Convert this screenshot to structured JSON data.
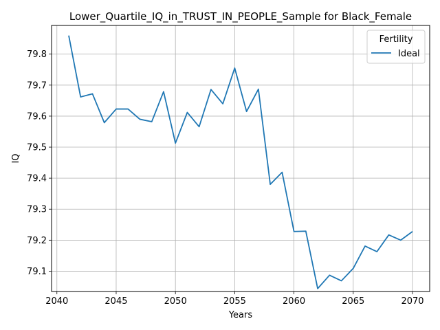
{
  "chart_data": {
    "type": "line",
    "title": "Lower_Quartile_IQ_in_TRUST_IN_PEOPLE_Sample for Black_Female",
    "xlabel": "Years",
    "ylabel": "IQ",
    "xlim": [
      2039.55,
      2071.45
    ],
    "ylim": [
      79.0345,
      79.8925
    ],
    "xticks": [
      2040,
      2045,
      2050,
      2055,
      2060,
      2065,
      2070
    ],
    "yticks": [
      79.1,
      79.2,
      79.3,
      79.4,
      79.5,
      79.6,
      79.7,
      79.8
    ],
    "grid": true,
    "legend": {
      "title": "Fertility",
      "placement": "top-right"
    },
    "series": [
      {
        "name": "Ideal",
        "color": "#1f77b4",
        "x": [
          2041,
          2042,
          2043,
          2044,
          2045,
          2046,
          2047,
          2048,
          2049,
          2050,
          2051,
          2052,
          2053,
          2054,
          2055,
          2056,
          2057,
          2058,
          2059,
          2060,
          2061,
          2062,
          2063,
          2064,
          2065,
          2066,
          2067,
          2068,
          2069,
          2070
        ],
        "y": [
          79.86,
          79.662,
          79.672,
          79.579,
          79.623,
          79.623,
          79.59,
          79.582,
          79.679,
          79.513,
          79.612,
          79.566,
          79.686,
          79.64,
          79.755,
          79.615,
          79.687,
          79.38,
          79.419,
          79.228,
          79.229,
          79.044,
          79.087,
          79.069,
          79.109,
          79.181,
          79.163,
          79.217,
          79.2,
          79.228
        ]
      }
    ]
  }
}
